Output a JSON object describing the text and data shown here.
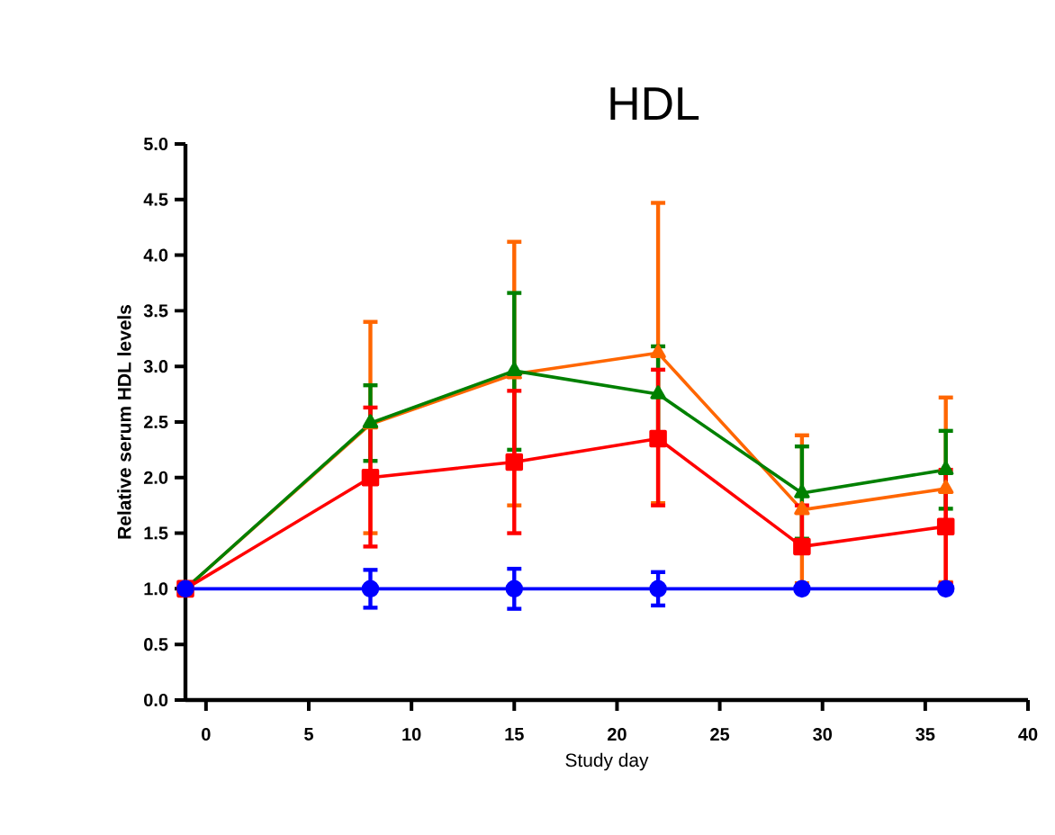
{
  "chart_data": {
    "type": "line",
    "title": "HDL",
    "xlabel": "Study day",
    "ylabel": "Relative serum HDL levels",
    "x": [
      -1,
      8,
      15,
      22,
      29,
      36
    ],
    "xlim": [
      -1,
      40
    ],
    "xticks": [
      0,
      5,
      10,
      15,
      20,
      25,
      30,
      35,
      40
    ],
    "ylim": [
      0,
      5
    ],
    "yticks": [
      {
        "value": 0,
        "label": "0.0"
      },
      {
        "value": 0.5,
        "label": "0.5"
      },
      {
        "value": 1,
        "label": "1.0"
      },
      {
        "value": 1.5,
        "label": "1.5"
      },
      {
        "value": 2,
        "label": "2.0"
      },
      {
        "value": 2.5,
        "label": "2.5"
      },
      {
        "value": 3,
        "label": "3.0"
      },
      {
        "value": 3.5,
        "label": "3.5"
      },
      {
        "value": 4,
        "label": "4.0"
      },
      {
        "value": 4.5,
        "label": "4.5"
      },
      {
        "value": 5,
        "label": "5.0"
      }
    ],
    "series": [
      {
        "color": "#ff6600",
        "marker": "triangle",
        "values": [
          1,
          2.48,
          2.93,
          3.12,
          1.71,
          1.9
        ],
        "errors": [
          null,
          [
            1.5,
            3.4
          ],
          [
            1.75,
            4.12
          ],
          [
            1.77,
            4.47
          ],
          [
            1.05,
            2.38
          ],
          [
            1.06,
            2.72
          ]
        ]
      },
      {
        "color": "#008000",
        "marker": "triangle",
        "values": [
          1,
          2.49,
          2.96,
          2.75,
          1.86,
          2.07
        ],
        "errors": [
          null,
          [
            2.15,
            2.83
          ],
          [
            2.25,
            3.66
          ],
          [
            2.32,
            3.18
          ],
          [
            1.45,
            2.28
          ],
          [
            1.72,
            2.42
          ]
        ]
      },
      {
        "color": "#ff0000",
        "marker": "square",
        "values": [
          1,
          2.0,
          2.14,
          2.35,
          1.38,
          1.56
        ],
        "errors": [
          null,
          [
            1.38,
            2.63
          ],
          [
            1.5,
            2.78
          ],
          [
            1.75,
            2.97
          ],
          [
            1.38,
            1.75
          ],
          [
            1.05,
            2.07
          ]
        ]
      },
      {
        "color": "#0000ff",
        "marker": "circle",
        "values": [
          1,
          1,
          1,
          1,
          1,
          1
        ],
        "errors": [
          null,
          [
            0.83,
            1.17
          ],
          [
            0.82,
            1.18
          ],
          [
            0.85,
            1.15
          ],
          null,
          null
        ]
      }
    ]
  }
}
